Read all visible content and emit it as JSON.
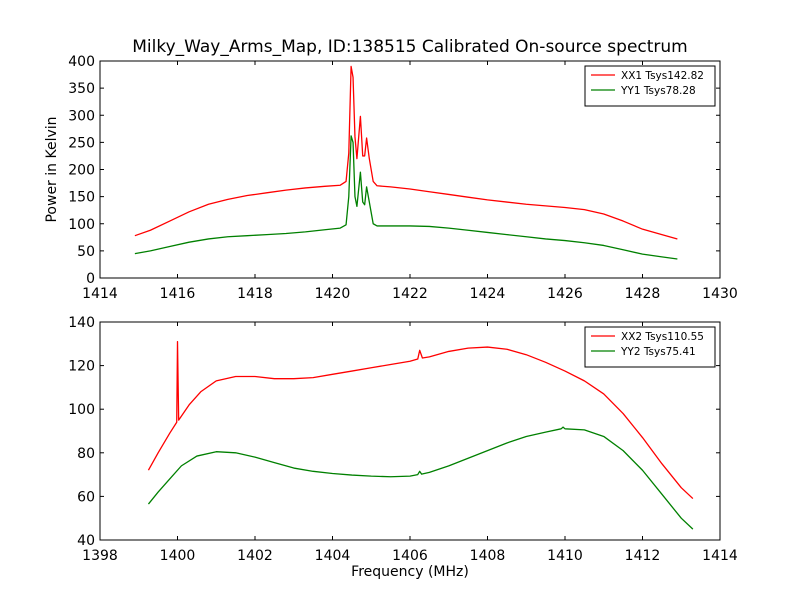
{
  "title": "Milky_Way_Arms_Map, ID:138515 Calibrated On-source spectrum",
  "chart_data": [
    {
      "type": "line",
      "title": "Milky_Way_Arms_Map, ID:138515 Calibrated On-source spectrum",
      "xlabel": "",
      "ylabel": "Power in Kelvin",
      "xlim": [
        1414,
        1430
      ],
      "ylim": [
        0,
        400
      ],
      "xticks": [
        1414,
        1416,
        1418,
        1420,
        1422,
        1424,
        1426,
        1428,
        1430
      ],
      "yticks": [
        0,
        50,
        100,
        150,
        200,
        250,
        300,
        350,
        400
      ],
      "grid": false,
      "legend_position": "top-right",
      "series": [
        {
          "name": "XX1 Tsys142.82",
          "color": "#ff0000",
          "points": [
            [
              1414.9,
              78
            ],
            [
              1415.3,
              88
            ],
            [
              1415.8,
              105
            ],
            [
              1416.3,
              122
            ],
            [
              1416.8,
              136
            ],
            [
              1417.3,
              145
            ],
            [
              1417.8,
              152
            ],
            [
              1418.3,
              157
            ],
            [
              1418.8,
              162
            ],
            [
              1419.3,
              166
            ],
            [
              1419.8,
              169
            ],
            [
              1420.2,
              171
            ],
            [
              1420.35,
              178
            ],
            [
              1420.42,
              230
            ],
            [
              1420.48,
              390
            ],
            [
              1420.53,
              370
            ],
            [
              1420.58,
              260
            ],
            [
              1420.63,
              220
            ],
            [
              1420.72,
              298
            ],
            [
              1420.78,
              225
            ],
            [
              1420.83,
              225
            ],
            [
              1420.88,
              258
            ],
            [
              1420.95,
              220
            ],
            [
              1421.05,
              178
            ],
            [
              1421.15,
              170
            ],
            [
              1421.5,
              168
            ],
            [
              1422.0,
              164
            ],
            [
              1422.5,
              159
            ],
            [
              1423.0,
              154
            ],
            [
              1423.5,
              149
            ],
            [
              1424.0,
              144
            ],
            [
              1424.5,
              140
            ],
            [
              1425.0,
              136
            ],
            [
              1425.5,
              133
            ],
            [
              1426.0,
              130
            ],
            [
              1426.5,
              126
            ],
            [
              1427.0,
              118
            ],
            [
              1427.5,
              105
            ],
            [
              1428.0,
              90
            ],
            [
              1428.5,
              80
            ],
            [
              1428.9,
              72
            ]
          ]
        },
        {
          "name": "YY1 Tsys78.28",
          "color": "#008000",
          "points": [
            [
              1414.9,
              45
            ],
            [
              1415.3,
              50
            ],
            [
              1415.8,
              58
            ],
            [
              1416.3,
              66
            ],
            [
              1416.8,
              72
            ],
            [
              1417.3,
              76
            ],
            [
              1417.8,
              78
            ],
            [
              1418.3,
              80
            ],
            [
              1418.8,
              82
            ],
            [
              1419.3,
              85
            ],
            [
              1419.8,
              89
            ],
            [
              1420.2,
              92
            ],
            [
              1420.35,
              98
            ],
            [
              1420.42,
              150
            ],
            [
              1420.48,
              262
            ],
            [
              1420.53,
              250
            ],
            [
              1420.58,
              150
            ],
            [
              1420.63,
              132
            ],
            [
              1420.72,
              195
            ],
            [
              1420.78,
              140
            ],
            [
              1420.83,
              135
            ],
            [
              1420.88,
              168
            ],
            [
              1420.95,
              140
            ],
            [
              1421.05,
              100
            ],
            [
              1421.15,
              96
            ],
            [
              1421.5,
              96
            ],
            [
              1422.0,
              96
            ],
            [
              1422.5,
              95
            ],
            [
              1423.0,
              92
            ],
            [
              1423.5,
              88
            ],
            [
              1424.0,
              84
            ],
            [
              1424.5,
              80
            ],
            [
              1425.0,
              76
            ],
            [
              1425.5,
              72
            ],
            [
              1426.0,
              69
            ],
            [
              1426.5,
              65
            ],
            [
              1427.0,
              60
            ],
            [
              1427.5,
              52
            ],
            [
              1428.0,
              44
            ],
            [
              1428.5,
              39
            ],
            [
              1428.9,
              35
            ]
          ]
        }
      ]
    },
    {
      "type": "line",
      "title": "",
      "xlabel": "Frequency (MHz)",
      "ylabel": "",
      "xlim": [
        1398,
        1414
      ],
      "ylim": [
        40,
        140
      ],
      "xticks": [
        1398,
        1400,
        1402,
        1404,
        1406,
        1408,
        1410,
        1412,
        1414
      ],
      "yticks": [
        40,
        60,
        80,
        100,
        120,
        140
      ],
      "grid": false,
      "legend_position": "top-right",
      "series": [
        {
          "name": "XX2 Tsys110.55",
          "color": "#ff0000",
          "points": [
            [
              1399.25,
              72
            ],
            [
              1399.5,
              80
            ],
            [
              1399.8,
              89
            ],
            [
              1399.98,
              94
            ],
            [
              1400.0,
              131
            ],
            [
              1400.03,
              95
            ],
            [
              1400.3,
              102
            ],
            [
              1400.6,
              108
            ],
            [
              1401.0,
              113
            ],
            [
              1401.5,
              115
            ],
            [
              1402.0,
              115
            ],
            [
              1402.5,
              114
            ],
            [
              1403.0,
              114
            ],
            [
              1403.5,
              114.5
            ],
            [
              1404.0,
              116
            ],
            [
              1404.5,
              117.5
            ],
            [
              1405.0,
              119
            ],
            [
              1405.5,
              120.5
            ],
            [
              1406.0,
              122
            ],
            [
              1406.2,
              123
            ],
            [
              1406.25,
              127
            ],
            [
              1406.32,
              123.5
            ],
            [
              1406.5,
              124
            ],
            [
              1407.0,
              126.5
            ],
            [
              1407.5,
              128
            ],
            [
              1408.0,
              128.5
            ],
            [
              1408.5,
              127.5
            ],
            [
              1409.0,
              125
            ],
            [
              1409.5,
              121.5
            ],
            [
              1410.0,
              117.5
            ],
            [
              1410.5,
              113
            ],
            [
              1411.0,
              107
            ],
            [
              1411.5,
              98
            ],
            [
              1412.0,
              87
            ],
            [
              1412.5,
              75
            ],
            [
              1413.0,
              64
            ],
            [
              1413.3,
              59
            ]
          ]
        },
        {
          "name": "YY2 Tsys75.41",
          "color": "#008000",
          "points": [
            [
              1399.25,
              56.5
            ],
            [
              1399.5,
              62
            ],
            [
              1399.8,
              68
            ],
            [
              1400.1,
              74
            ],
            [
              1400.5,
              78.5
            ],
            [
              1401.0,
              80.5
            ],
            [
              1401.5,
              80
            ],
            [
              1402.0,
              78
            ],
            [
              1402.5,
              75.5
            ],
            [
              1403.0,
              73
            ],
            [
              1403.5,
              71.5
            ],
            [
              1404.0,
              70.5
            ],
            [
              1404.5,
              69.8
            ],
            [
              1405.0,
              69.3
            ],
            [
              1405.5,
              69
            ],
            [
              1406.0,
              69.3
            ],
            [
              1406.2,
              70
            ],
            [
              1406.25,
              71.5
            ],
            [
              1406.3,
              70.2
            ],
            [
              1406.5,
              71
            ],
            [
              1407.0,
              74
            ],
            [
              1407.5,
              77.5
            ],
            [
              1408.0,
              81
            ],
            [
              1408.5,
              84.5
            ],
            [
              1409.0,
              87.5
            ],
            [
              1409.5,
              89.5
            ],
            [
              1409.9,
              91
            ],
            [
              1409.95,
              91.8
            ],
            [
              1410.0,
              91
            ],
            [
              1410.5,
              90.5
            ],
            [
              1411.0,
              87.5
            ],
            [
              1411.5,
              81
            ],
            [
              1412.0,
              72
            ],
            [
              1412.5,
              61
            ],
            [
              1413.0,
              50
            ],
            [
              1413.3,
              45
            ]
          ]
        }
      ]
    }
  ]
}
